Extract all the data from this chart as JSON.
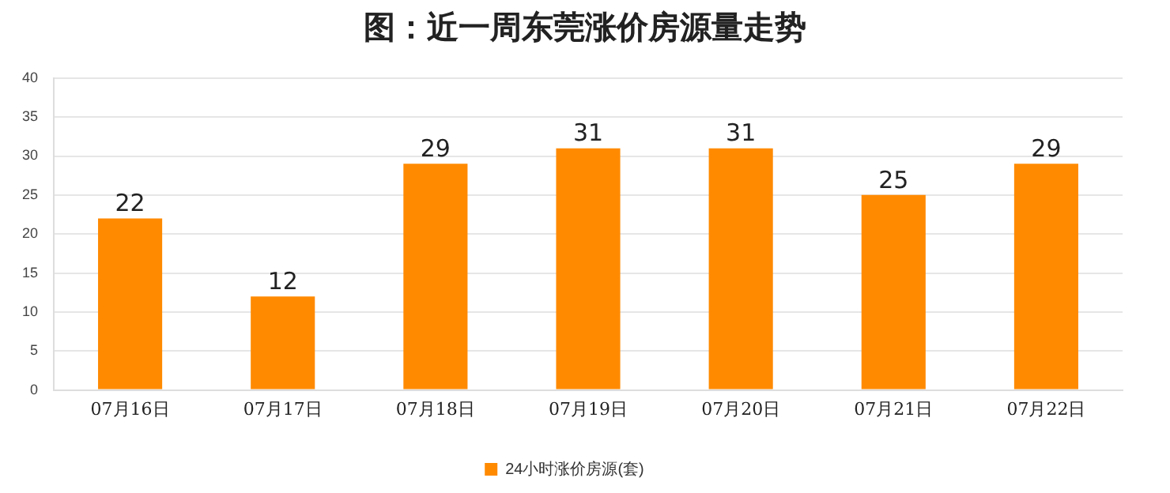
{
  "chart_data": {
    "type": "bar",
    "title": "图：近一周东莞涨价房源量走势",
    "categories": [
      "07月16日",
      "07月17日",
      "07月18日",
      "07月19日",
      "07月20日",
      "07月21日",
      "07月22日"
    ],
    "series": [
      {
        "name": "24小时涨价房源(套)",
        "color": "#ff8a00",
        "values": [
          22,
          12,
          29,
          31,
          31,
          25,
          29
        ]
      }
    ],
    "ylim": [
      0,
      40
    ],
    "yticks": [
      0,
      5,
      10,
      15,
      20,
      25,
      30,
      35,
      40
    ],
    "grid": "y",
    "legend": "bottom",
    "data_labels": true
  }
}
